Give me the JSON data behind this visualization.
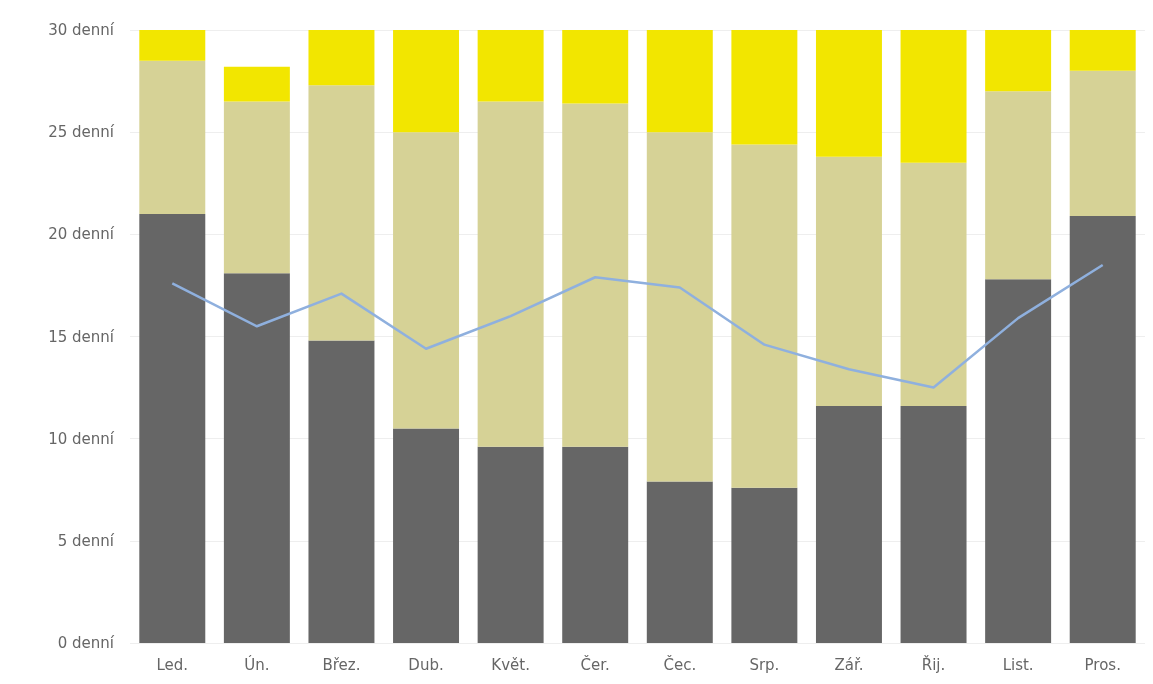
{
  "chart_data": {
    "type": "bar",
    "stacked": true,
    "categories": [
      "Led.",
      "Ún.",
      "Břez.",
      "Dub.",
      "Květ.",
      "Čer.",
      "Čec.",
      "Srp.",
      "Zář.",
      "Řij.",
      "List.",
      "Pros."
    ],
    "series": [
      {
        "color": "#666666",
        "values": [
          21.0,
          18.1,
          14.8,
          10.5,
          9.6,
          9.6,
          7.9,
          7.6,
          11.6,
          11.6,
          17.8,
          20.9
        ]
      },
      {
        "color": "#d6d296",
        "values": [
          7.5,
          8.4,
          12.5,
          14.5,
          16.9,
          16.8,
          17.1,
          16.8,
          12.2,
          11.9,
          9.2,
          7.1
        ]
      },
      {
        "color": "#f2e600",
        "values": [
          1.5,
          1.7,
          2.7,
          5.0,
          3.5,
          3.6,
          5.0,
          5.6,
          6.2,
          6.5,
          3.0,
          2.0
        ]
      },
      {
        "type": "line",
        "color": "#8fb0de",
        "values": [
          17.6,
          15.5,
          17.1,
          14.4,
          16.0,
          17.9,
          17.4,
          14.6,
          13.4,
          12.5,
          15.9,
          18.5
        ]
      }
    ],
    "ylim": [
      0,
      30
    ],
    "yticks": [
      {
        "value": 0,
        "label": "0 denní"
      },
      {
        "value": 5,
        "label": "5 denní"
      },
      {
        "value": 10,
        "label": "10 denní"
      },
      {
        "value": 15,
        "label": "15 denní"
      },
      {
        "value": 20,
        "label": "20 denní"
      },
      {
        "value": 25,
        "label": "25 denní"
      },
      {
        "value": 30,
        "label": "30 denní"
      }
    ],
    "grid": "y",
    "marker": "none",
    "line_style": "solid"
  }
}
